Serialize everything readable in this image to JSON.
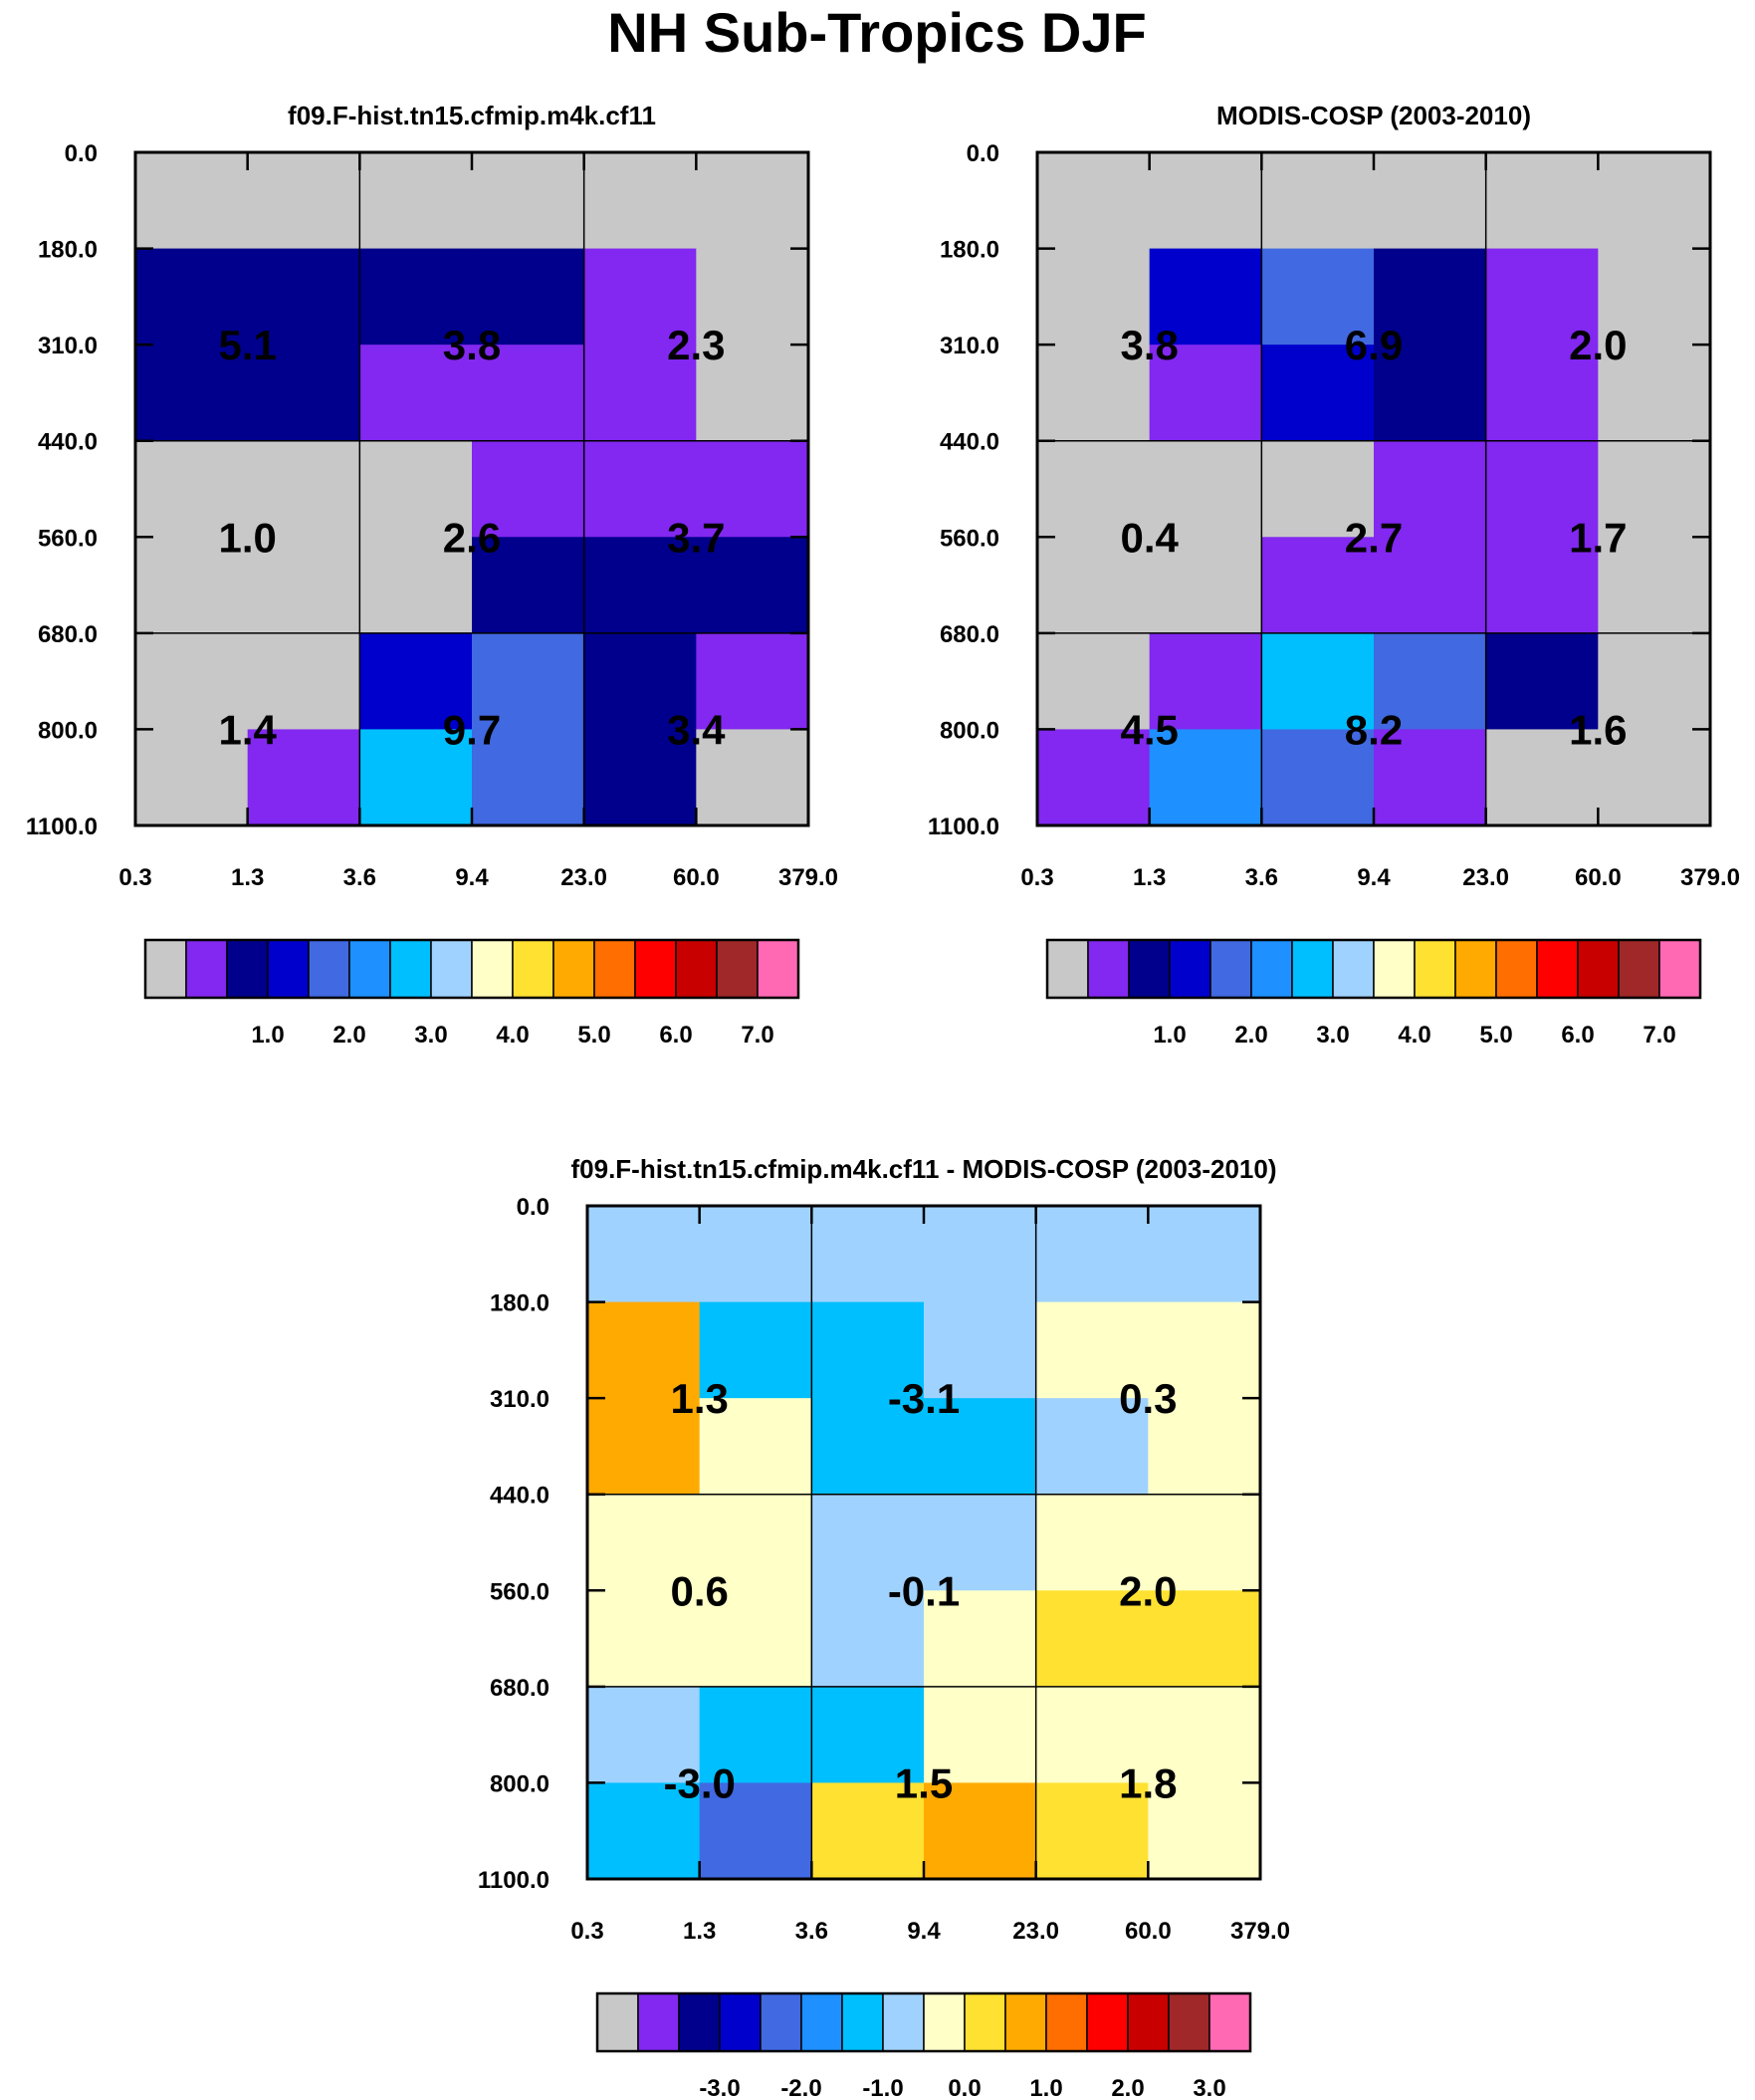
{
  "title": "NH Sub-Tropics DJF",
  "palette": [
    "#c8c8c8",
    "#8228f0",
    "#00008c",
    "#0000cd",
    "#4169e1",
    "#1e90ff",
    "#00bfff",
    "#a0d2ff",
    "#ffffc8",
    "#ffe132",
    "#ffaa00",
    "#ff6e00",
    "#ff0000",
    "#c80000",
    "#a02828",
    "#ff69b4"
  ],
  "chart_data": [
    {
      "type": "heatmap",
      "title": "f09.F-hist.tn15.cfmip.m4k.cf11",
      "x_ticks": [
        "0.3",
        "1.3",
        "3.6",
        "9.4",
        "23.0",
        "60.0",
        "379.0"
      ],
      "y_ticks": [
        "0.0",
        "180.0",
        "310.0",
        "440.0",
        "560.0",
        "680.0",
        "800.0",
        "1100.0"
      ],
      "cell_color_index": [
        [
          0,
          0,
          0,
          0,
          0,
          0
        ],
        [
          2,
          2,
          2,
          2,
          1,
          0
        ],
        [
          2,
          2,
          1,
          1,
          1,
          0
        ],
        [
          0,
          0,
          0,
          1,
          1,
          1
        ],
        [
          0,
          0,
          0,
          2,
          2,
          2
        ],
        [
          0,
          0,
          3,
          4,
          2,
          1
        ],
        [
          0,
          1,
          6,
          4,
          2,
          0
        ]
      ],
      "group_labels": [
        [
          "5.1",
          "3.8",
          "2.3"
        ],
        [
          "1.0",
          "2.6",
          "3.7"
        ],
        [
          "1.4",
          "9.7",
          "3.4"
        ]
      ],
      "colorbar_labels": [
        "1.0",
        "2.0",
        "3.0",
        "4.0",
        "5.0",
        "6.0",
        "7.0"
      ]
    },
    {
      "type": "heatmap",
      "title": "MODIS-COSP (2003-2010)",
      "x_ticks": [
        "0.3",
        "1.3",
        "3.6",
        "9.4",
        "23.0",
        "60.0",
        "379.0"
      ],
      "y_ticks": [
        "0.0",
        "180.0",
        "310.0",
        "440.0",
        "560.0",
        "680.0",
        "800.0",
        "1100.0"
      ],
      "cell_color_index": [
        [
          0,
          0,
          0,
          0,
          0,
          0
        ],
        [
          0,
          3,
          4,
          2,
          1,
          0
        ],
        [
          0,
          1,
          3,
          2,
          1,
          0
        ],
        [
          0,
          0,
          0,
          1,
          1,
          0
        ],
        [
          0,
          0,
          1,
          1,
          1,
          0
        ],
        [
          0,
          1,
          6,
          4,
          2,
          0
        ],
        [
          1,
          5,
          4,
          1,
          0,
          0
        ]
      ],
      "group_labels": [
        [
          "3.8",
          "6.9",
          "2.0"
        ],
        [
          "0.4",
          "2.7",
          "1.7"
        ],
        [
          "4.5",
          "8.2",
          "1.6"
        ]
      ],
      "colorbar_labels": [
        "1.0",
        "2.0",
        "3.0",
        "4.0",
        "5.0",
        "6.0",
        "7.0"
      ]
    },
    {
      "type": "heatmap",
      "title": "f09.F-hist.tn15.cfmip.m4k.cf11 - MODIS-COSP (2003-2010)",
      "x_ticks": [
        "0.3",
        "1.3",
        "3.6",
        "9.4",
        "23.0",
        "60.0",
        "379.0"
      ],
      "y_ticks": [
        "0.0",
        "180.0",
        "310.0",
        "440.0",
        "560.0",
        "680.0",
        "800.0",
        "1100.0"
      ],
      "cell_color_index": [
        [
          7,
          7,
          7,
          7,
          7,
          7
        ],
        [
          10,
          6,
          6,
          7,
          8,
          8
        ],
        [
          10,
          8,
          6,
          6,
          7,
          8
        ],
        [
          8,
          8,
          7,
          7,
          8,
          8
        ],
        [
          8,
          8,
          7,
          8,
          9,
          9
        ],
        [
          7,
          6,
          6,
          8,
          8,
          8
        ],
        [
          6,
          4,
          9,
          10,
          9,
          8
        ]
      ],
      "group_labels": [
        [
          "1.3",
          "-3.1",
          "0.3"
        ],
        [
          "0.6",
          "-0.1",
          "2.0"
        ],
        [
          "-3.0",
          "1.5",
          "1.8"
        ]
      ],
      "colorbar_labels": [
        "-3.0",
        "-2.0",
        "-1.0",
        "0.0",
        "1.0",
        "2.0",
        "3.0"
      ]
    }
  ]
}
